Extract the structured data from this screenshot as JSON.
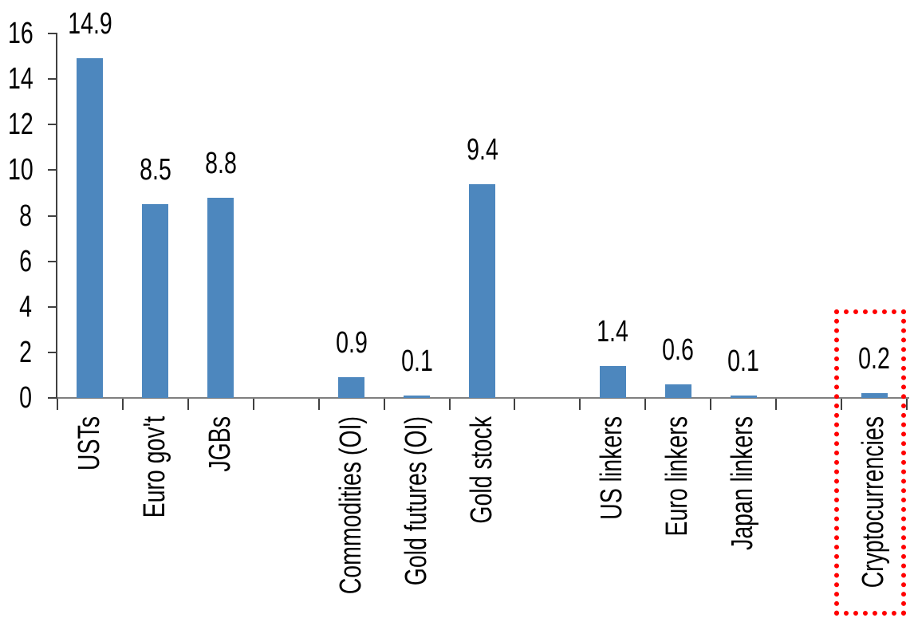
{
  "chart_data": {
    "type": "bar",
    "title": "",
    "xlabel": "",
    "ylabel": "",
    "categories": [
      "USTs",
      "Euro gov't",
      "JGBs",
      "",
      "Commodities (OI)",
      "Gold futures (OI)",
      "Gold stock",
      "",
      "US linkers",
      "Euro linkers",
      "Japan linkers",
      "",
      "Cryptocurrencies"
    ],
    "values": [
      14.9,
      8.5,
      8.8,
      null,
      0.9,
      0.1,
      9.4,
      null,
      1.4,
      0.6,
      0.1,
      null,
      0.2
    ],
    "value_labels": [
      "14.9",
      "8.5",
      "8.8",
      "",
      "0.9",
      "0.1",
      "9.4",
      "",
      "1.4",
      "0.6",
      "0.1",
      "",
      "0.2"
    ],
    "ylim": [
      0,
      16
    ],
    "yticks": [
      0,
      2,
      4,
      6,
      8,
      10,
      12,
      14,
      16
    ],
    "grid": false,
    "legend": null,
    "colors": {
      "bar": "#4D87BE",
      "axis": "#404040",
      "baseline": "#7F7F7F",
      "text": "#000000",
      "highlight": "#FF0000"
    },
    "highlight": {
      "category": "Cryptocurrencies",
      "category_index": 12,
      "style": "red-dotted-box"
    }
  }
}
